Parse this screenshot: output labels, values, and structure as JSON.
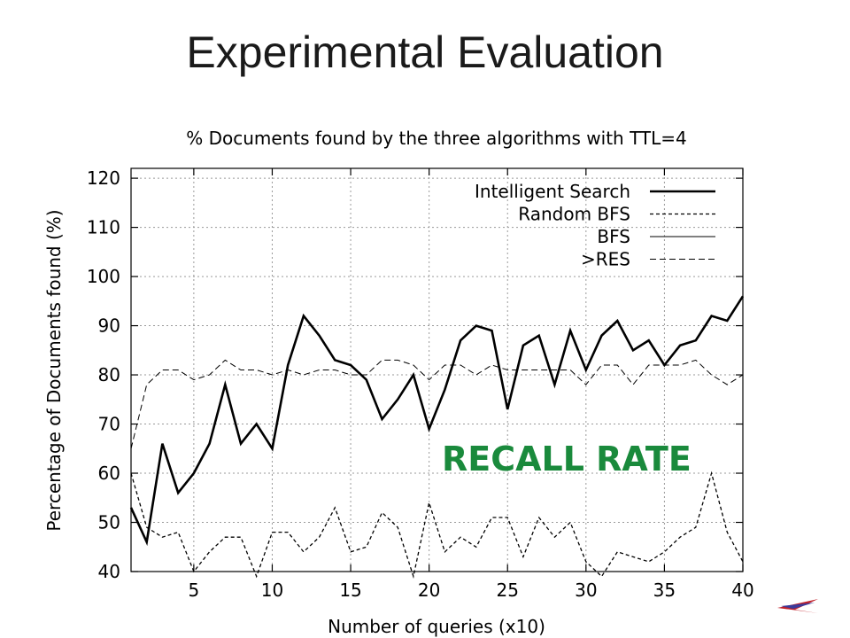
{
  "slide_title": "Experimental Evaluation",
  "annotation": "RECALL RATE",
  "colors": {
    "annotation": "#1a8a3c",
    "axis": "#000000",
    "grid": "#9a9a9a",
    "logo": "#c0202a"
  },
  "chart_data": {
    "type": "line",
    "title": "% Documents found by the three algorithms with TTL=4",
    "xlabel": "Number of queries (x10)",
    "ylabel": "Percentage of Documents found (%)",
    "xlim": [
      1,
      40
    ],
    "ylim": [
      40,
      122
    ],
    "xticks": [
      5,
      10,
      15,
      20,
      25,
      30,
      35,
      40
    ],
    "yticks": [
      40,
      50,
      60,
      70,
      80,
      90,
      100,
      110,
      120
    ],
    "grid": true,
    "legend_position": "top-right",
    "x": [
      1,
      2,
      3,
      4,
      5,
      6,
      7,
      8,
      9,
      10,
      11,
      12,
      13,
      14,
      15,
      16,
      17,
      18,
      19,
      20,
      21,
      22,
      23,
      24,
      25,
      26,
      27,
      28,
      29,
      30,
      31,
      32,
      33,
      34,
      35,
      36,
      37,
      38,
      39,
      40
    ],
    "series": [
      {
        "name": "Intelligent Search",
        "style": "solid-thick",
        "values": [
          53,
          46,
          66,
          56,
          60,
          66,
          78,
          66,
          70,
          65,
          82,
          92,
          88,
          83,
          82,
          79,
          71,
          75,
          80,
          69,
          77,
          87,
          90,
          89,
          73,
          86,
          88,
          78,
          89,
          81,
          88,
          91,
          85,
          87,
          82,
          86,
          87,
          92,
          91,
          96
        ]
      },
      {
        "name": "Random BFS",
        "style": "dashed",
        "values": [
          60,
          49,
          47,
          48,
          40,
          44,
          47,
          47,
          39,
          48,
          48,
          44,
          47,
          53,
          44,
          45,
          52,
          49,
          39,
          54,
          44,
          47,
          45,
          51,
          51,
          43,
          51,
          47,
          50,
          42,
          39,
          44,
          43,
          42,
          44,
          47,
          49,
          60,
          48,
          42
        ]
      },
      {
        "name": "BFS",
        "style": "solid-thin",
        "values": [
          40,
          40,
          40,
          40,
          40,
          40,
          40,
          40,
          40,
          40,
          40,
          40,
          40,
          40,
          40,
          40,
          40,
          40,
          40,
          40,
          40,
          40,
          40,
          40,
          40,
          40,
          40,
          40,
          40,
          40,
          40,
          40,
          40,
          40,
          40,
          40,
          40,
          40,
          40,
          40
        ]
      },
      {
        "name": ">RES",
        "style": "long-dashed",
        "values": [
          65,
          78,
          81,
          81,
          79,
          80,
          83,
          81,
          81,
          80,
          81,
          80,
          81,
          81,
          80,
          80,
          83,
          83,
          82,
          79,
          82,
          82,
          80,
          82,
          81,
          81,
          81,
          81,
          81,
          78,
          82,
          82,
          78,
          82,
          82,
          82,
          83,
          80,
          78,
          80
        ]
      }
    ]
  }
}
